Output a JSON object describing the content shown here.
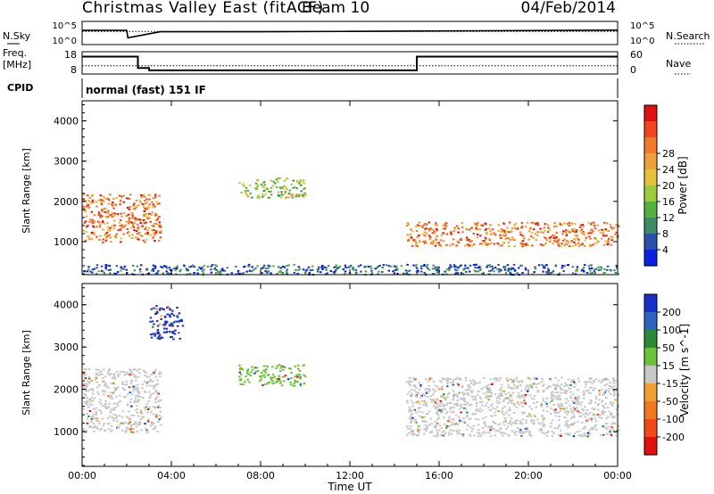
{
  "header": {
    "station": "Christmas Valley East (fitACF)",
    "beam": "Beam 10",
    "date": "04/Feb/2014"
  },
  "noise_panel": {
    "left_label": "N.Sky",
    "left_ticks": [
      "10^5",
      "10^0"
    ],
    "right_ticks": [
      "10^5",
      "10^0"
    ],
    "right_label": "N.Search"
  },
  "freq_panel": {
    "left_label_1": "Freq.",
    "left_label_2": "[MHz]",
    "left_ticks": [
      "18",
      "8"
    ],
    "right_ticks": [
      "60",
      "0"
    ],
    "right_label": "Nave"
  },
  "cpid": {
    "label": "CPID",
    "value": "normal (fast) 151 IF"
  },
  "colors": {
    "frame": "#000000",
    "background": "#ffffff"
  },
  "chart_data": [
    {
      "type": "line",
      "title": "N.Sky / N.Search",
      "x_ticks": [
        "00:00",
        "04:00",
        "08:00",
        "12:00",
        "16:00",
        "20:00",
        "00:00"
      ],
      "series": [
        {
          "name": "N.Sky",
          "style": "solid",
          "x_hours": [
            0,
            2,
            2.05,
            3.5,
            8,
            12,
            15,
            18,
            24
          ],
          "log10_values": [
            3.3,
            3.3,
            1.0,
            2.9,
            2.9,
            3.0,
            3.1,
            3.2,
            3.4
          ]
        },
        {
          "name": "N.Search",
          "style": "dotted",
          "x_hours": [
            0,
            24
          ],
          "log10_values": [
            3.0,
            3.0
          ]
        }
      ],
      "ylim_log10": [
        0,
        5
      ]
    },
    {
      "type": "line",
      "title": "Freq. / Nave",
      "x_ticks": [
        "00:00",
        "04:00",
        "08:00",
        "12:00",
        "16:00",
        "20:00",
        "00:00"
      ],
      "series": [
        {
          "name": "Freq.",
          "unit": "MHz",
          "style": "solid",
          "x_hours": [
            0,
            2.5,
            2.5,
            3.0,
            3.0,
            15.0,
            15.0,
            24
          ],
          "values": [
            16.7,
            16.7,
            10.0,
            10.0,
            8.6,
            8.6,
            16.7,
            16.7
          ]
        },
        {
          "name": "Nave",
          "style": "dotted",
          "x_hours": [
            0,
            24
          ],
          "values": [
            20,
            20
          ]
        }
      ],
      "ylim_left": [
        8,
        18
      ],
      "ylim_right": [
        0,
        60
      ]
    },
    {
      "type": "heatmap",
      "title": "Power",
      "xlabel": "",
      "ylabel": "Slant Range [km]",
      "x_ticks": [
        "00:00",
        "04:00",
        "08:00",
        "12:00",
        "16:00",
        "20:00",
        "00:00"
      ],
      "y_ticks": [
        "1000",
        "2000",
        "3000",
        "4000"
      ],
      "ylim": [
        180,
        4500
      ],
      "colorbar": {
        "label": "Power [dB]",
        "ticks": [
          "4",
          "8",
          "12",
          "16",
          "20",
          "24",
          "28"
        ],
        "colors": [
          "#0a1fe0",
          "#2a4fa8",
          "#3d8c64",
          "#55b040",
          "#9ccc3c",
          "#e8c23a",
          "#f0a03a",
          "#f27a2a",
          "#ef4520",
          "#e01010"
        ]
      },
      "features": [
        {
          "x_hours": [
            0,
            3.5
          ],
          "range_km": [
            1000,
            2200
          ],
          "level": "high",
          "note": "red band"
        },
        {
          "x_hours": [
            14.5,
            24
          ],
          "range_km": [
            900,
            1500
          ],
          "level": "high",
          "note": "red band"
        },
        {
          "x_hours": [
            7,
            10
          ],
          "range_km": [
            2100,
            2600
          ],
          "level": "mid"
        },
        {
          "x_hours": [
            0,
            24
          ],
          "range_km": [
            200,
            450
          ],
          "level": "low",
          "note": "ground scatter near range"
        }
      ]
    },
    {
      "type": "heatmap",
      "title": "Velocity",
      "xlabel": "Time UT",
      "ylabel": "Slant Range [km]",
      "x_ticks": [
        "00:00",
        "04:00",
        "08:00",
        "12:00",
        "16:00",
        "20:00",
        "00:00"
      ],
      "y_ticks": [
        "1000",
        "2000",
        "3000",
        "4000"
      ],
      "ylim": [
        180,
        4500
      ],
      "colorbar": {
        "label": "Velocity [m s^-1]",
        "ticks": [
          "200",
          "100",
          "50",
          "15",
          "-15",
          "-50",
          "-100",
          "-200"
        ],
        "colors": [
          "#1a2fc8",
          "#2e64c0",
          "#2a8a3a",
          "#6cc23a",
          "#c8c8c8",
          "#f0a030",
          "#f07a20",
          "#f04a18",
          "#e01010"
        ]
      },
      "features": [
        {
          "x_hours": [
            0,
            3.5
          ],
          "range_km": [
            1000,
            2500
          ],
          "level": "grey",
          "note": "ground scatter"
        },
        {
          "x_hours": [
            14.5,
            24
          ],
          "range_km": [
            900,
            2300
          ],
          "level": "grey",
          "note": "ground scatter"
        },
        {
          "x_hours": [
            7,
            10
          ],
          "range_km": [
            2100,
            2600
          ],
          "level": "green"
        },
        {
          "x_hours": [
            3,
            4.5
          ],
          "range_km": [
            3200,
            4000
          ],
          "level": "blue"
        }
      ]
    }
  ]
}
